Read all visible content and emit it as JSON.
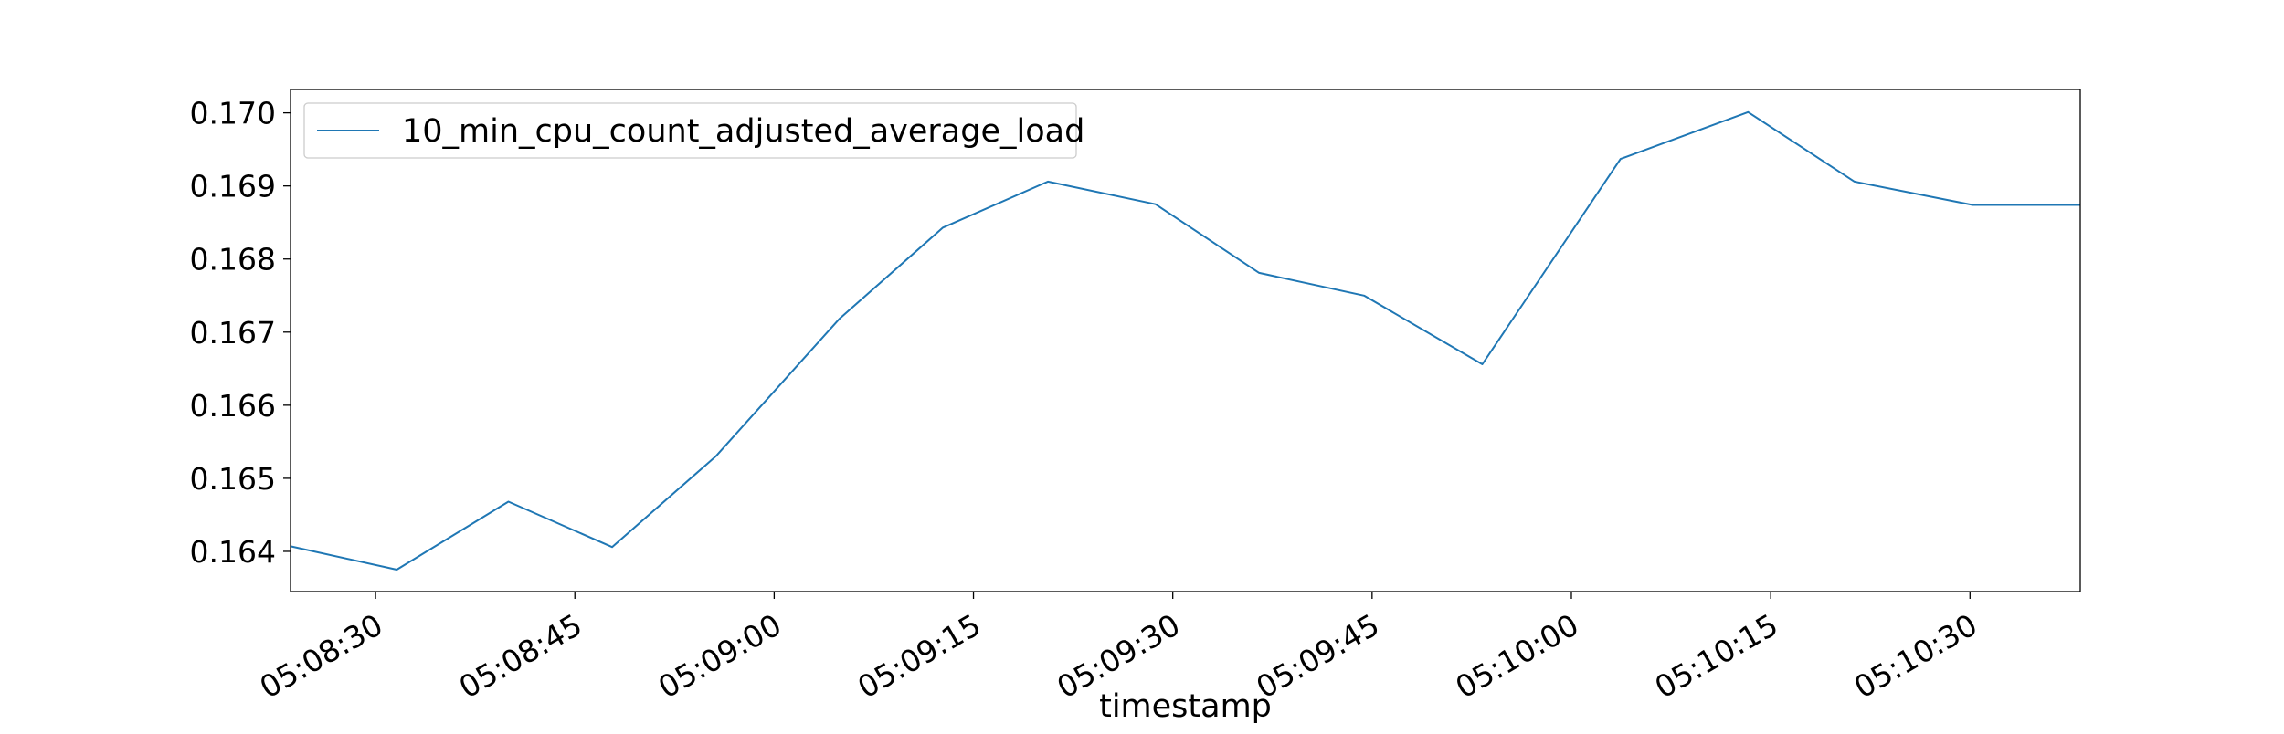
{
  "chart_data": {
    "type": "line",
    "title": "",
    "xlabel": "timestamp",
    "ylabel": "",
    "x_tick_labels": [
      "05:08:30",
      "05:08:45",
      "05:09:00",
      "05:09:15",
      "05:09:30",
      "05:09:45",
      "05:10:00",
      "05:10:15",
      "05:10:30"
    ],
    "x_tick_seconds": [
      30,
      45,
      60,
      75,
      90,
      105,
      120,
      135,
      150
    ],
    "xlim_seconds": [
      23.6,
      158.3
    ],
    "y_ticks": [
      0.164,
      0.165,
      0.166,
      0.167,
      0.168,
      0.169,
      0.17
    ],
    "y_tick_labels": [
      "0.164",
      "0.165",
      "0.166",
      "0.167",
      "0.168",
      "0.169",
      "0.170"
    ],
    "ylim": [
      0.16345,
      0.17032
    ],
    "grid": false,
    "legend_position": "top-left",
    "series": [
      {
        "name": "10_min_cpu_count_adjusted_average_load",
        "color": "#1f77b4",
        "x_seconds": [
          23.6,
          31.6,
          40.0,
          47.8,
          55.6,
          64.9,
          72.7,
          80.6,
          88.7,
          96.5,
          104.4,
          113.3,
          123.7,
          133.3,
          141.3,
          150.2,
          158.3
        ],
        "values": [
          0.16407,
          0.16375,
          0.16468,
          0.16406,
          0.1653,
          0.16718,
          0.16843,
          0.16906,
          0.16875,
          0.16781,
          0.1675,
          0.16656,
          0.16937,
          0.17001,
          0.16906,
          0.16874,
          0.16874
        ]
      }
    ]
  }
}
